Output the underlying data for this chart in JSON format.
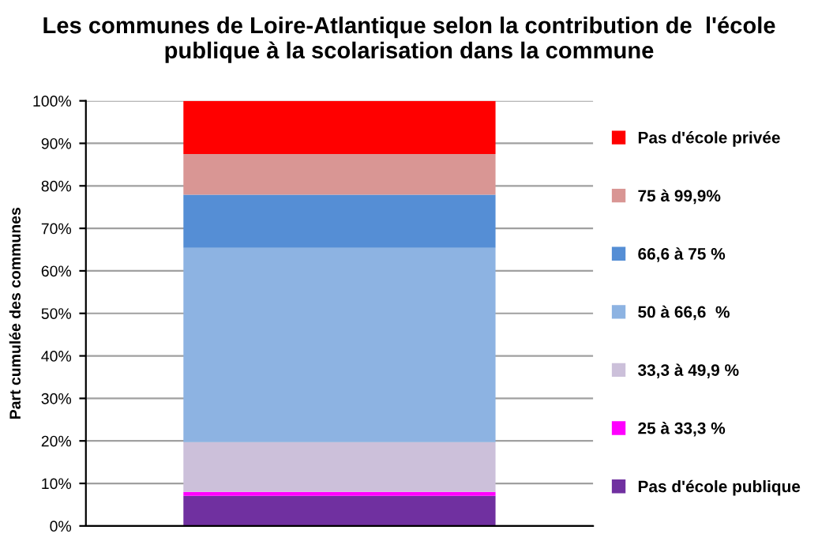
{
  "chart_data": {
    "type": "bar",
    "stacked": true,
    "title": "Les communes de Loire-Atlantique selon la contribution de  l'école publique à la scolarisation dans la commune",
    "ylabel": "Part cumulée des communes",
    "categories": [
      null
    ],
    "series": [
      {
        "name": "Pas d'école publique",
        "color": "#7030a0",
        "values": [
          7.1
        ]
      },
      {
        "name": "25 à 33,3 %",
        "color": "#ff00ff",
        "values": [
          0.9
        ]
      },
      {
        "name": "33,3 à 49,9 %",
        "color": "#ccc0da",
        "values": [
          11.7
        ]
      },
      {
        "name": "50 à 66,6  %",
        "color": "#8db3e2",
        "values": [
          45.7
        ]
      },
      {
        "name": "66,6 à 75 %",
        "color": "#558ed5",
        "values": [
          12.5
        ]
      },
      {
        "name": "75 à 99,9%",
        "color": "#d99694",
        "values": [
          9.6
        ]
      },
      {
        "name": "Pas d'école privée",
        "color": "#ff0000",
        "values": [
          12.5
        ]
      }
    ],
    "ylim": [
      0,
      100
    ],
    "yticks": [
      {
        "value": 0,
        "label": "0%"
      },
      {
        "value": 10,
        "label": "10%"
      },
      {
        "value": 20,
        "label": "20%"
      },
      {
        "value": 30,
        "label": "30%"
      },
      {
        "value": 40,
        "label": "40%"
      },
      {
        "value": 50,
        "label": "50%"
      },
      {
        "value": 60,
        "label": "60%"
      },
      {
        "value": 70,
        "label": "70%"
      },
      {
        "value": 80,
        "label": "80%"
      },
      {
        "value": 90,
        "label": "90%"
      },
      {
        "value": 100,
        "label": "100%"
      }
    ],
    "grid": "y",
    "legend": "right"
  }
}
